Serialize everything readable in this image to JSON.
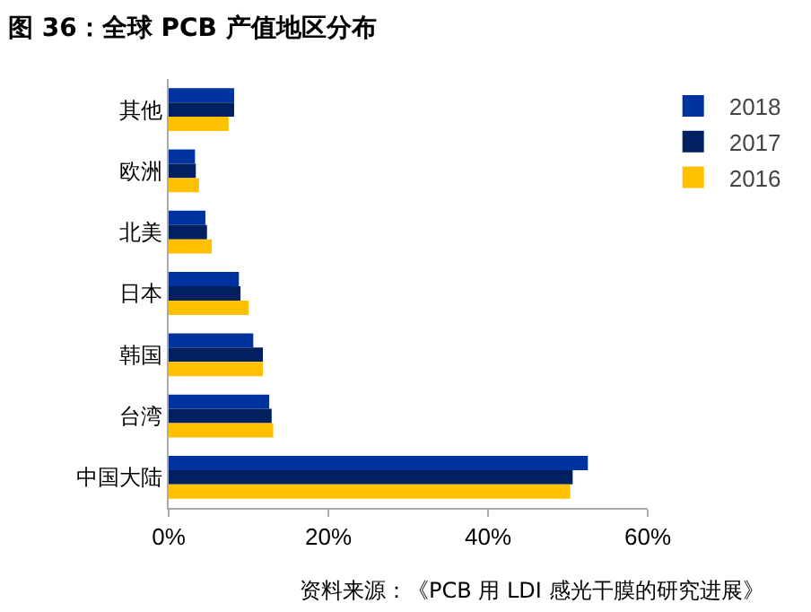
{
  "chart_data": {
    "type": "bar",
    "orientation": "horizontal",
    "title": "图 36：全球 PCB 产值地区分布",
    "categories": [
      "其他",
      "欧洲",
      "北美",
      "日本",
      "韩国",
      "台湾",
      "中国大陆"
    ],
    "series": [
      {
        "name": "2018",
        "color": "#0033a0",
        "values": [
          8.2,
          3.3,
          4.6,
          8.8,
          10.6,
          12.6,
          52.5
        ]
      },
      {
        "name": "2017",
        "color": "#002060",
        "values": [
          8.2,
          3.4,
          4.8,
          9.0,
          11.8,
          12.9,
          50.6
        ]
      },
      {
        "name": "2016",
        "color": "#ffc000",
        "values": [
          7.5,
          3.8,
          5.4,
          10.0,
          11.8,
          13.1,
          50.3
        ]
      }
    ],
    "xlim": [
      0,
      60
    ],
    "xticks": [
      {
        "value": 0,
        "label": "0%"
      },
      {
        "value": 20,
        "label": "20%"
      },
      {
        "value": 40,
        "label": "40%"
      },
      {
        "value": 60,
        "label": "60%"
      }
    ],
    "grid": false,
    "legend": "right",
    "annotations": [
      "资料来源：《PCB 用 LDI 感光干膜的研究进展》"
    ]
  }
}
